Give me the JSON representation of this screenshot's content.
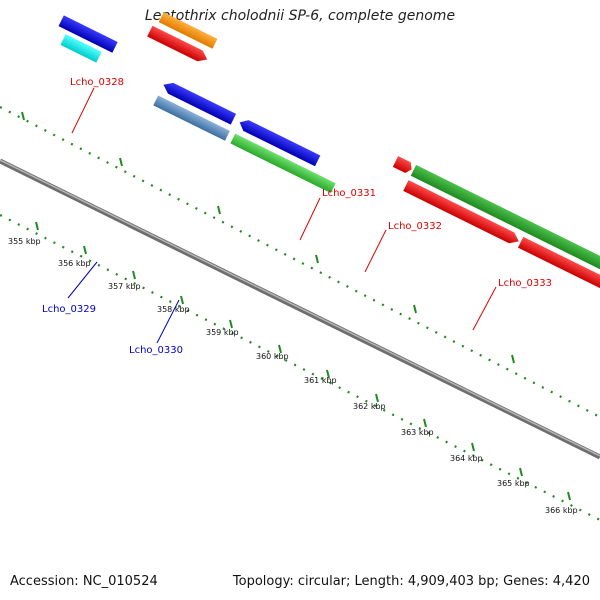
{
  "title": "Leptothrix cholodnii SP-6, complete genome",
  "footer": {
    "accession": "Accession: NC_010524",
    "topology": "Topology: circular; Length: 4,909,403 bp; Genes: 4,420"
  },
  "colors": {
    "backbone": "#8a8a8a",
    "tick_green": "#1f8a1f",
    "label_red": "#e00000",
    "label_blue": "#0000cc"
  },
  "ticks": [
    "355 kbp",
    "356 kbp",
    "357 kbp",
    "358 kbp",
    "359 kbp",
    "360 kbp",
    "361 kbp",
    "362 kbp",
    "363 kbp",
    "364 kbp",
    "365 kbp",
    "366 kbp"
  ],
  "gene_labels": [
    {
      "text": "Lcho_0328",
      "color": "red"
    },
    {
      "text": "Lcho_0329",
      "color": "blue"
    },
    {
      "text": "Lcho_0330",
      "color": "blue"
    },
    {
      "text": "Lcho_0331",
      "color": "red"
    },
    {
      "text": "Lcho_0332",
      "color": "red"
    },
    {
      "text": "Lcho_0333",
      "color": "red"
    }
  ]
}
